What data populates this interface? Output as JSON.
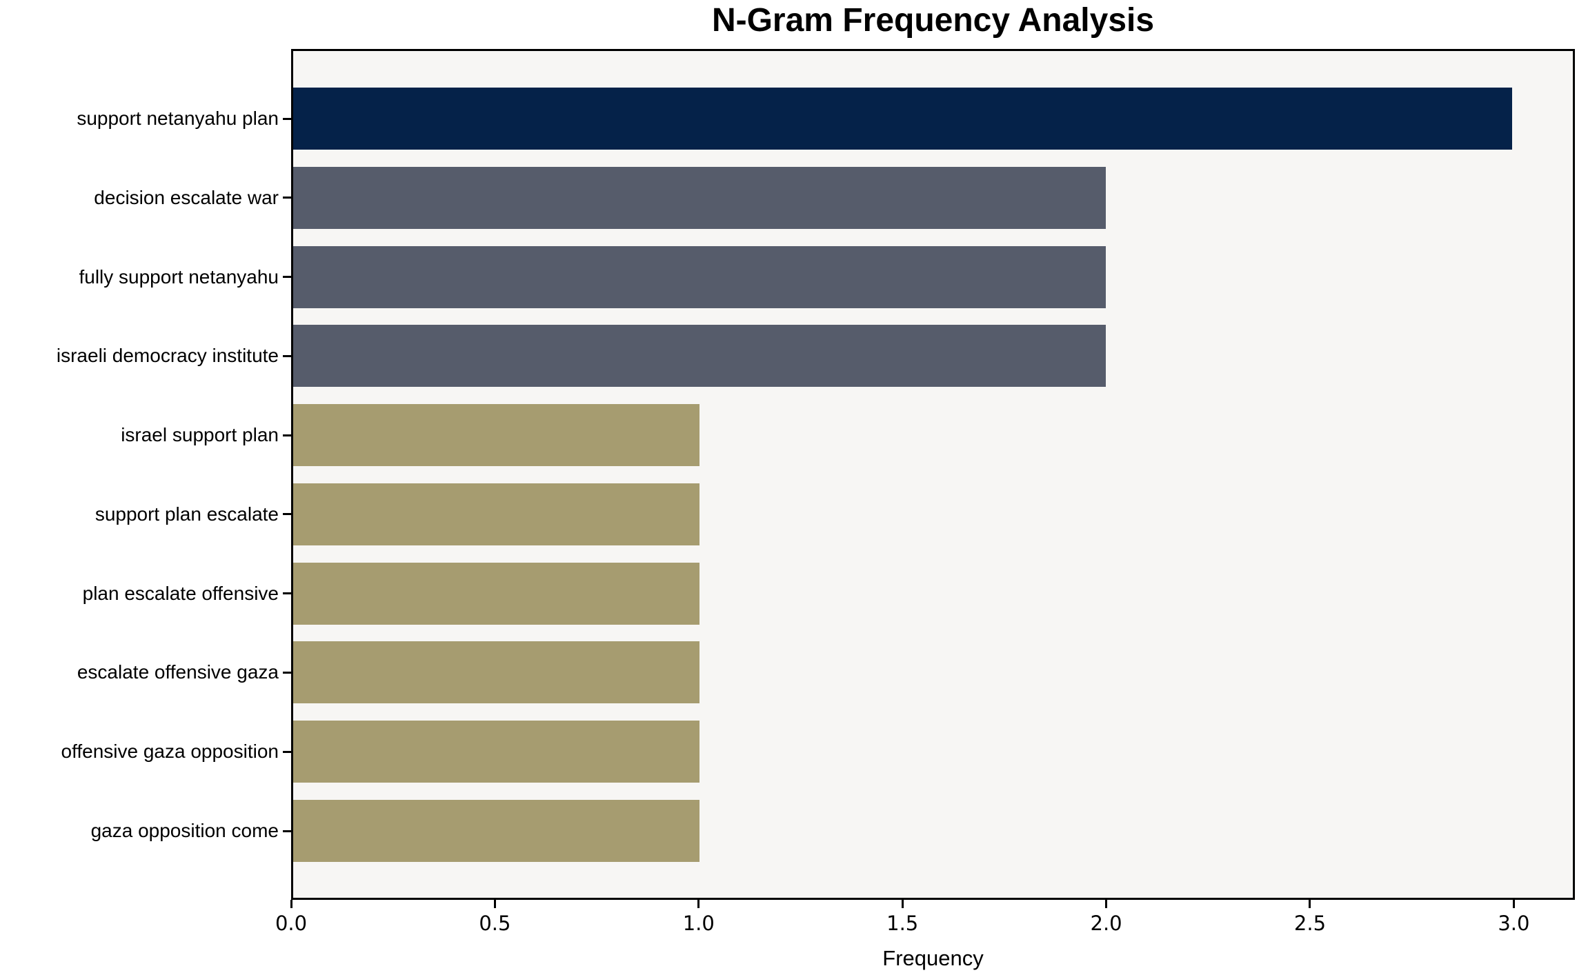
{
  "chart_data": {
    "type": "bar",
    "orientation": "horizontal",
    "title": "N-Gram Frequency Analysis",
    "xlabel": "Frequency",
    "ylabel": "",
    "categories": [
      "support netanyahu plan",
      "decision escalate war",
      "fully support netanyahu",
      "israeli democracy institute",
      "israel support plan",
      "support plan escalate",
      "plan escalate offensive",
      "escalate offensive gaza",
      "offensive gaza opposition",
      "gaza opposition come"
    ],
    "values": [
      3,
      2,
      2,
      2,
      1,
      1,
      1,
      1,
      1,
      1
    ],
    "bar_colors": [
      "#052249",
      "#565c6b",
      "#565c6b",
      "#565c6b",
      "#a69c70",
      "#a69c70",
      "#a69c70",
      "#a69c70",
      "#a69c70",
      "#a69c70"
    ],
    "xlim": [
      0,
      3.15
    ],
    "xticks": [
      0.0,
      0.5,
      1.0,
      1.5,
      2.0,
      2.5,
      3.0
    ],
    "xtick_labels": [
      "0.0",
      "0.5",
      "1.0",
      "1.5",
      "2.0",
      "2.5",
      "3.0"
    ],
    "grid": false,
    "legend": null,
    "colors": {
      "plot_background": "#f7f6f4",
      "figure_background": "#ffffff",
      "axis": "#000000",
      "text": "#000000"
    }
  }
}
